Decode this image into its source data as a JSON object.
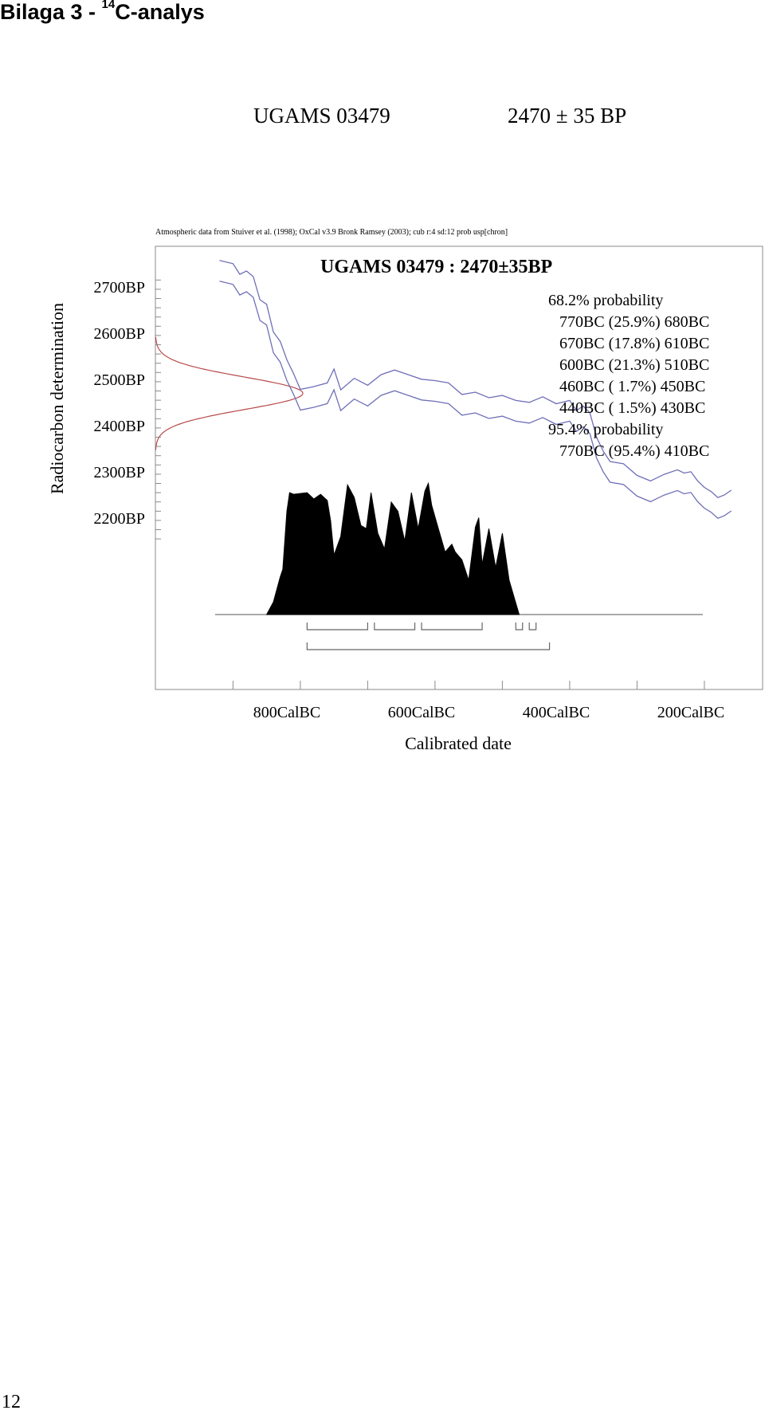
{
  "page": {
    "heading_prefix": "Bilaga 3 - ",
    "heading_sup": "14",
    "heading_suffix": "C-analys",
    "sample_title": "UGAMS 03479",
    "sample_age": "2470 ± 35 BP",
    "source_note": "Atmospheric data from Stuiver et al. (1998); OxCal v3.9 Bronk Ramsey (2003); cub r:4 sd:12 prob usp[chron]",
    "page_number": "12"
  },
  "chart_data": {
    "type": "area",
    "title": "UGAMS 03479 : 2470±35BP",
    "xlabel": "Calibrated date",
    "ylabel": "Radiocarbon determination",
    "x_tick_labels": [
      "800CalBC",
      "600CalBC",
      "400CalBC",
      "200CalBC"
    ],
    "x_ticks_calBC": [
      800,
      600,
      400,
      200
    ],
    "y_tick_labels": [
      "2700BP",
      "2600BP",
      "2500BP",
      "2400BP",
      "2300BP",
      "2200BP"
    ],
    "y_ticks_BP": [
      2700,
      2600,
      2500,
      2400,
      2300,
      2200
    ],
    "xlim_calBC": [
      900,
      120
    ],
    "ylim_BP": [
      2155,
      2730
    ],
    "radiocarbon_measurement": {
      "mean_BP": 2470,
      "sd": 35,
      "color": "#b84a4a"
    },
    "calibration_curve": {
      "color": "#6f6fb8",
      "points": [
        [
          900,
          2735
        ],
        [
          880,
          2728
        ],
        [
          870,
          2705
        ],
        [
          860,
          2712
        ],
        [
          850,
          2700
        ],
        [
          840,
          2650
        ],
        [
          830,
          2640
        ],
        [
          820,
          2580
        ],
        [
          810,
          2560
        ],
        [
          800,
          2520
        ],
        [
          790,
          2490
        ],
        [
          780,
          2456
        ],
        [
          760,
          2462
        ],
        [
          740,
          2470
        ],
        [
          730,
          2500
        ],
        [
          720,
          2455
        ],
        [
          700,
          2480
        ],
        [
          680,
          2465
        ],
        [
          660,
          2488
        ],
        [
          640,
          2498
        ],
        [
          620,
          2488
        ],
        [
          600,
          2478
        ],
        [
          580,
          2475
        ],
        [
          560,
          2470
        ],
        [
          540,
          2445
        ],
        [
          520,
          2450
        ],
        [
          500,
          2438
        ],
        [
          480,
          2443
        ],
        [
          460,
          2432
        ],
        [
          440,
          2428
        ],
        [
          420,
          2440
        ],
        [
          400,
          2425
        ],
        [
          380,
          2432
        ],
        [
          370,
          2410
        ],
        [
          360,
          2420
        ],
        [
          350,
          2405
        ],
        [
          340,
          2352
        ],
        [
          330,
          2322
        ],
        [
          320,
          2300
        ],
        [
          300,
          2295
        ],
        [
          280,
          2270
        ],
        [
          260,
          2258
        ],
        [
          240,
          2272
        ],
        [
          220,
          2282
        ],
        [
          210,
          2275
        ],
        [
          200,
          2278
        ],
        [
          190,
          2258
        ],
        [
          180,
          2244
        ],
        [
          170,
          2235
        ],
        [
          160,
          2222
        ],
        [
          150,
          2228
        ],
        [
          140,
          2238
        ]
      ]
    },
    "probability_distribution": [
      [
        830,
        0.0
      ],
      [
        820,
        0.08
      ],
      [
        810,
        0.24
      ],
      [
        806,
        0.29
      ],
      [
        800,
        0.66
      ],
      [
        796,
        0.78
      ],
      [
        790,
        0.77
      ],
      [
        770,
        0.78
      ],
      [
        760,
        0.74
      ],
      [
        750,
        0.77
      ],
      [
        740,
        0.73
      ],
      [
        735,
        0.6
      ],
      [
        730,
        0.38
      ],
      [
        720,
        0.5
      ],
      [
        710,
        0.83
      ],
      [
        700,
        0.75
      ],
      [
        690,
        0.57
      ],
      [
        682,
        0.55
      ],
      [
        675,
        0.78
      ],
      [
        665,
        0.52
      ],
      [
        655,
        0.42
      ],
      [
        645,
        0.72
      ],
      [
        635,
        0.66
      ],
      [
        625,
        0.47
      ],
      [
        615,
        0.78
      ],
      [
        605,
        0.55
      ],
      [
        595,
        0.79
      ],
      [
        590,
        0.84
      ],
      [
        585,
        0.7
      ],
      [
        575,
        0.55
      ],
      [
        565,
        0.4
      ],
      [
        555,
        0.45
      ],
      [
        550,
        0.4
      ],
      [
        540,
        0.35
      ],
      [
        530,
        0.22
      ],
      [
        520,
        0.56
      ],
      [
        515,
        0.62
      ],
      [
        510,
        0.32
      ],
      [
        500,
        0.55
      ],
      [
        490,
        0.3
      ],
      [
        480,
        0.52
      ],
      [
        470,
        0.22
      ],
      [
        455,
        0.0
      ]
    ],
    "probability_text": {
      "heading_68": "68.2% probability",
      "ranges_68": [
        "770BC (25.9%) 680BC",
        "670BC (17.8%) 610BC",
        "600BC (21.3%) 510BC",
        "460BC ( 1.7%) 450BC",
        "440BC ( 1.5%) 430BC"
      ],
      "heading_95": "95.4% probability",
      "ranges_95": [
        "770BC (95.4%) 410BC"
      ]
    },
    "ranges_68_calBC": [
      [
        770,
        680
      ],
      [
        670,
        610
      ],
      [
        600,
        510
      ],
      [
        460,
        450
      ],
      [
        440,
        430
      ]
    ],
    "ranges_95_calBC": [
      [
        770,
        410
      ]
    ]
  }
}
